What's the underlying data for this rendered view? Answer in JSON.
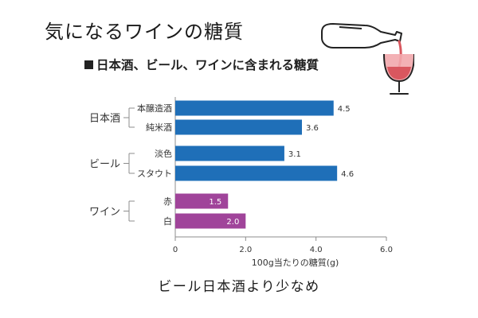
{
  "headline": "気になるワインの糖質",
  "caption": "ビール日本酒より少なめ",
  "colors": {
    "blue_bar": "#1f6fb8",
    "purple_bar": "#a0449a",
    "axis": "#8c8c8c",
    "label_text": "#333333",
    "wine_red": "#d9575f"
  },
  "illustration": {
    "icon": "wine-bottle-pouring-into-glass-icon"
  },
  "chart_data": {
    "type": "bar",
    "orientation": "horizontal",
    "title": "日本酒、ビール、ワインに含まれる糖質",
    "xlabel": "100g当たりの糖質(g)",
    "ylabel": "",
    "xlim": [
      0,
      6.0
    ],
    "xticks": [
      "0",
      "2.0",
      "4.0",
      "6.0"
    ],
    "grid": false,
    "groups": [
      {
        "name": "日本酒",
        "bars": [
          {
            "label": "本醸造酒",
            "value": 4.5,
            "value_label": "4.5",
            "color": "#1f6fb8",
            "label_inside": false
          },
          {
            "label": "純米酒",
            "value": 3.6,
            "value_label": "3.6",
            "color": "#1f6fb8",
            "label_inside": false
          }
        ]
      },
      {
        "name": "ビール",
        "bars": [
          {
            "label": "淡色",
            "value": 3.1,
            "value_label": "3.1",
            "color": "#1f6fb8",
            "label_inside": false
          },
          {
            "label": "スタウト",
            "value": 4.6,
            "value_label": "4.6",
            "color": "#1f6fb8",
            "label_inside": false
          }
        ]
      },
      {
        "name": "ワイン",
        "bars": [
          {
            "label": "赤",
            "value": 1.5,
            "value_label": "1.5",
            "color": "#a0449a",
            "label_inside": true
          },
          {
            "label": "白",
            "value": 2.0,
            "value_label": "2.0",
            "color": "#a0449a",
            "label_inside": true
          }
        ]
      }
    ]
  }
}
